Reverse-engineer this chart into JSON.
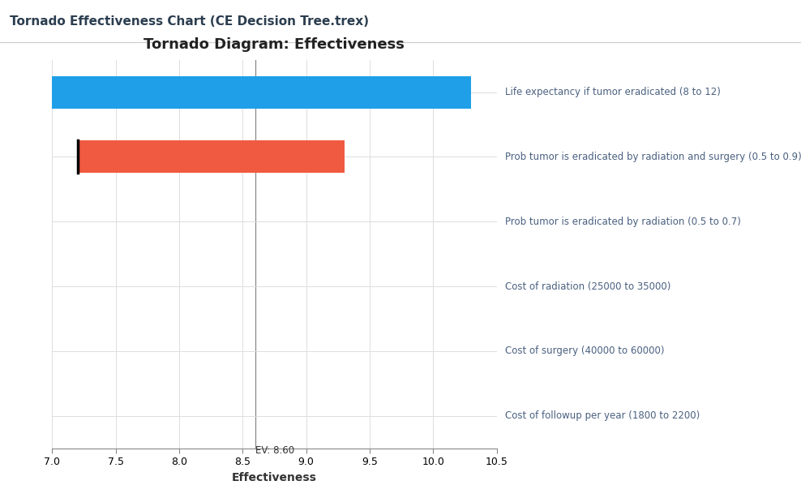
{
  "title_bar": "Tornado Effectiveness Chart (CE Decision Tree.trex)",
  "chart_title": "Tornado Diagram: Effectiveness",
  "xlabel": "Effectiveness",
  "ev_value": 8.6,
  "xlim": [
    7.0,
    10.5
  ],
  "xticks": [
    7.0,
    7.5,
    8.0,
    8.5,
    9.0,
    9.5,
    10.0,
    10.5
  ],
  "bars": [
    {
      "label": "Life expectancy if tumor eradicated (8 to 12)",
      "low": 7.0,
      "high": 10.3,
      "color": "#1E9FE8",
      "has_left_edge": false
    },
    {
      "label": "Prob tumor is eradicated by radiation and surgery (0.5 to 0.9)",
      "low": 7.2,
      "high": 9.3,
      "color": "#F05A40",
      "has_left_edge": true
    },
    {
      "label": "Prob tumor is eradicated by radiation (0.5 to 0.7)",
      "low": null,
      "high": null,
      "color": "#F05A40",
      "has_left_edge": false
    },
    {
      "label": "Cost of radiation (25000 to 35000)",
      "low": null,
      "high": null,
      "color": "#F05A40",
      "has_left_edge": false
    },
    {
      "label": "Cost of surgery (40000 to 60000)",
      "low": null,
      "high": null,
      "color": "#F05A40",
      "has_left_edge": false
    },
    {
      "label": "Cost of followup per year (1800 to 2200)",
      "low": null,
      "high": null,
      "color": "#F05A40",
      "has_left_edge": false
    }
  ],
  "label_color": "#4A6080",
  "ev_line_color": "#888888",
  "grid_color": "#DDDDDD",
  "background_color": "#FFFFFF",
  "title_bar_fontsize": 11,
  "title_bar_color": "#FAFAFA",
  "title_bar_border_color": "#CCCCCC",
  "bar_height": 0.5,
  "chart_title_fontsize": 13,
  "label_fontsize": 8.5,
  "xlabel_fontsize": 10
}
